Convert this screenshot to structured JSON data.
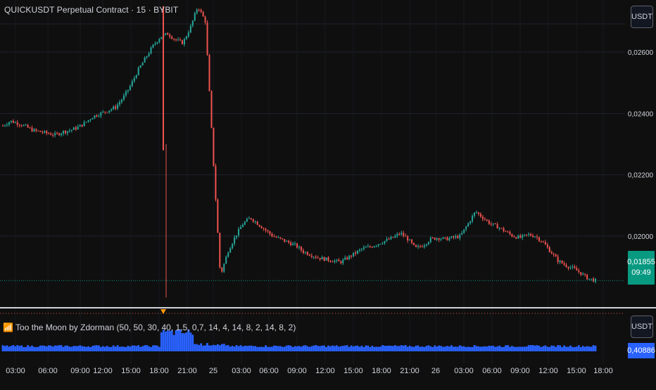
{
  "header": {
    "title": "QUICKUSDT Perpetual Contract · 15 · BYBIT",
    "currency_label": "USDT"
  },
  "price_axis": {
    "labels": [
      "0,02600",
      "0,02400",
      "0,02200",
      "0,02000"
    ],
    "last_price": "0,01855",
    "countdown": "09:49"
  },
  "indicator": {
    "title": "📶 Too the Moon by Zdorman (50, 50, 30, 40, 1,5, 0,7, 14, 4, 14, 8, 2, 14, 8, 2)",
    "currency_label": "USDT",
    "last_value": "0,40886"
  },
  "time_axis": {
    "labels": [
      "03:00",
      "06:00",
      "09:00",
      "12:00",
      "15:00",
      "18:00",
      "21:00",
      "25",
      "03:00",
      "06:00",
      "09:00",
      "12:00",
      "15:00",
      "18:00",
      "21:00",
      "26",
      "03:00",
      "06:00",
      "09:00",
      "12:00",
      "15:00",
      "18:00"
    ]
  },
  "colors": {
    "background": "#0f0f0f",
    "up": "#26a69a",
    "down": "#ef5350",
    "volume": "#2962ff",
    "price_line": "#089981",
    "signal": "#ff9800"
  },
  "chart_data": {
    "type": "candlestick",
    "symbol": "QUICKUSDT",
    "interval": "15",
    "ylim": [
      0.0178,
      0.0277
    ],
    "series": [
      {
        "type": "close",
        "values": [
          0.0236,
          0.02375,
          0.02368,
          0.02358,
          0.02345,
          0.0234,
          0.02335,
          0.0233,
          0.0234,
          0.02345,
          0.02355,
          0.0237,
          0.0239,
          0.024,
          0.0241,
          0.0242,
          0.0245,
          0.0249,
          0.0254,
          0.0258,
          0.0262,
          0.0265,
          0.0266,
          0.0264,
          0.0263,
          0.0268,
          0.0275,
          0.027,
          0.0227,
          0.0187,
          0.0195,
          0.02,
          0.0204,
          0.0206,
          0.0204,
          0.0202,
          0.02,
          0.0199,
          0.0198,
          0.0197,
          0.0195,
          0.0194,
          0.0193,
          0.01925,
          0.0192,
          0.01915,
          0.0193,
          0.01945,
          0.0196,
          0.01965,
          0.01975,
          0.01985,
          0.01995,
          0.0201,
          0.0199,
          0.0196,
          0.0197,
          0.0199,
          0.01995,
          0.0199,
          0.01995,
          0.02,
          0.0204,
          0.0208,
          0.0206,
          0.0204,
          0.0203,
          0.02015,
          0.02,
          0.01995,
          0.02005,
          0.02,
          0.0198,
          0.0195,
          0.0192,
          0.01905,
          0.01895,
          0.0188,
          0.01862,
          0.01855
        ]
      },
      {
        "type": "volume_oscillator",
        "last": 0.40886
      }
    ]
  }
}
